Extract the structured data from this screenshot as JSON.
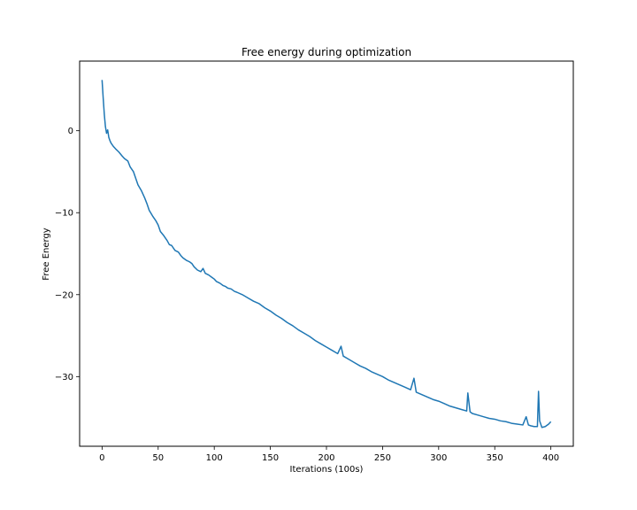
{
  "chart_data": {
    "type": "line",
    "title": "Free energy during optimization",
    "xlabel": "Iterations (100s)",
    "ylabel": "Free Energy",
    "xlim": [
      -20,
      420
    ],
    "ylim": [
      -38.5,
      8.5
    ],
    "xticks": [
      0,
      50,
      100,
      150,
      200,
      250,
      300,
      350,
      400
    ],
    "yticks": [
      0,
      -10,
      -20,
      -30
    ],
    "ytick_labels": [
      "0",
      "−10",
      "−20",
      "−30"
    ],
    "grid": false,
    "legend": "none",
    "series": [
      {
        "color": "#1f77b4",
        "x": [
          0,
          1,
          2,
          3,
          4,
          5,
          6,
          7,
          8,
          10,
          12,
          15,
          18,
          20,
          23,
          25,
          28,
          30,
          32,
          35,
          38,
          40,
          42,
          45,
          48,
          50,
          52,
          55,
          58,
          60,
          62,
          65,
          68,
          70,
          72,
          75,
          78,
          80,
          82,
          85,
          88,
          90,
          92,
          95,
          98,
          100,
          102,
          105,
          108,
          110,
          112,
          115,
          118,
          120,
          125,
          130,
          135,
          140,
          145,
          150,
          155,
          160,
          165,
          170,
          175,
          180,
          185,
          190,
          195,
          200,
          205,
          210,
          213,
          215,
          220,
          225,
          230,
          235,
          240,
          245,
          250,
          255,
          260,
          265,
          270,
          275,
          278,
          280,
          285,
          290,
          295,
          300,
          305,
          310,
          315,
          320,
          325,
          326,
          328,
          330,
          335,
          340,
          345,
          350,
          355,
          360,
          365,
          370,
          375,
          378,
          380,
          382,
          385,
          388,
          389,
          390,
          392,
          395,
          398,
          400
        ],
        "y": [
          6.2,
          4.0,
          2.0,
          0.5,
          -0.3,
          0.1,
          -0.8,
          -1.2,
          -1.5,
          -1.9,
          -2.2,
          -2.6,
          -3.1,
          -3.4,
          -3.7,
          -4.4,
          -5.0,
          -5.8,
          -6.6,
          -7.3,
          -8.2,
          -8.9,
          -9.7,
          -10.4,
          -11.0,
          -11.5,
          -12.3,
          -12.8,
          -13.4,
          -13.9,
          -14.0,
          -14.6,
          -14.8,
          -15.2,
          -15.5,
          -15.8,
          -16.0,
          -16.2,
          -16.6,
          -17.0,
          -17.2,
          -16.8,
          -17.4,
          -17.6,
          -17.9,
          -18.1,
          -18.4,
          -18.6,
          -18.9,
          -19.0,
          -19.2,
          -19.3,
          -19.6,
          -19.7,
          -20.0,
          -20.4,
          -20.8,
          -21.1,
          -21.6,
          -22.0,
          -22.5,
          -22.9,
          -23.4,
          -23.8,
          -24.3,
          -24.7,
          -25.1,
          -25.6,
          -26.0,
          -26.4,
          -26.8,
          -27.2,
          -26.3,
          -27.5,
          -27.9,
          -28.3,
          -28.7,
          -29.0,
          -29.4,
          -29.7,
          -30.0,
          -30.4,
          -30.7,
          -31.0,
          -31.3,
          -31.6,
          -30.2,
          -31.9,
          -32.2,
          -32.5,
          -32.8,
          -33.0,
          -33.3,
          -33.6,
          -33.8,
          -34.0,
          -34.2,
          -32.0,
          -34.3,
          -34.5,
          -34.7,
          -34.9,
          -35.1,
          -35.2,
          -35.4,
          -35.5,
          -35.7,
          -35.8,
          -35.9,
          -34.9,
          -35.9,
          -36.0,
          -36.1,
          -36.1,
          -31.8,
          -35.4,
          -36.2,
          -36.1,
          -35.8,
          -35.5
        ]
      }
    ]
  }
}
